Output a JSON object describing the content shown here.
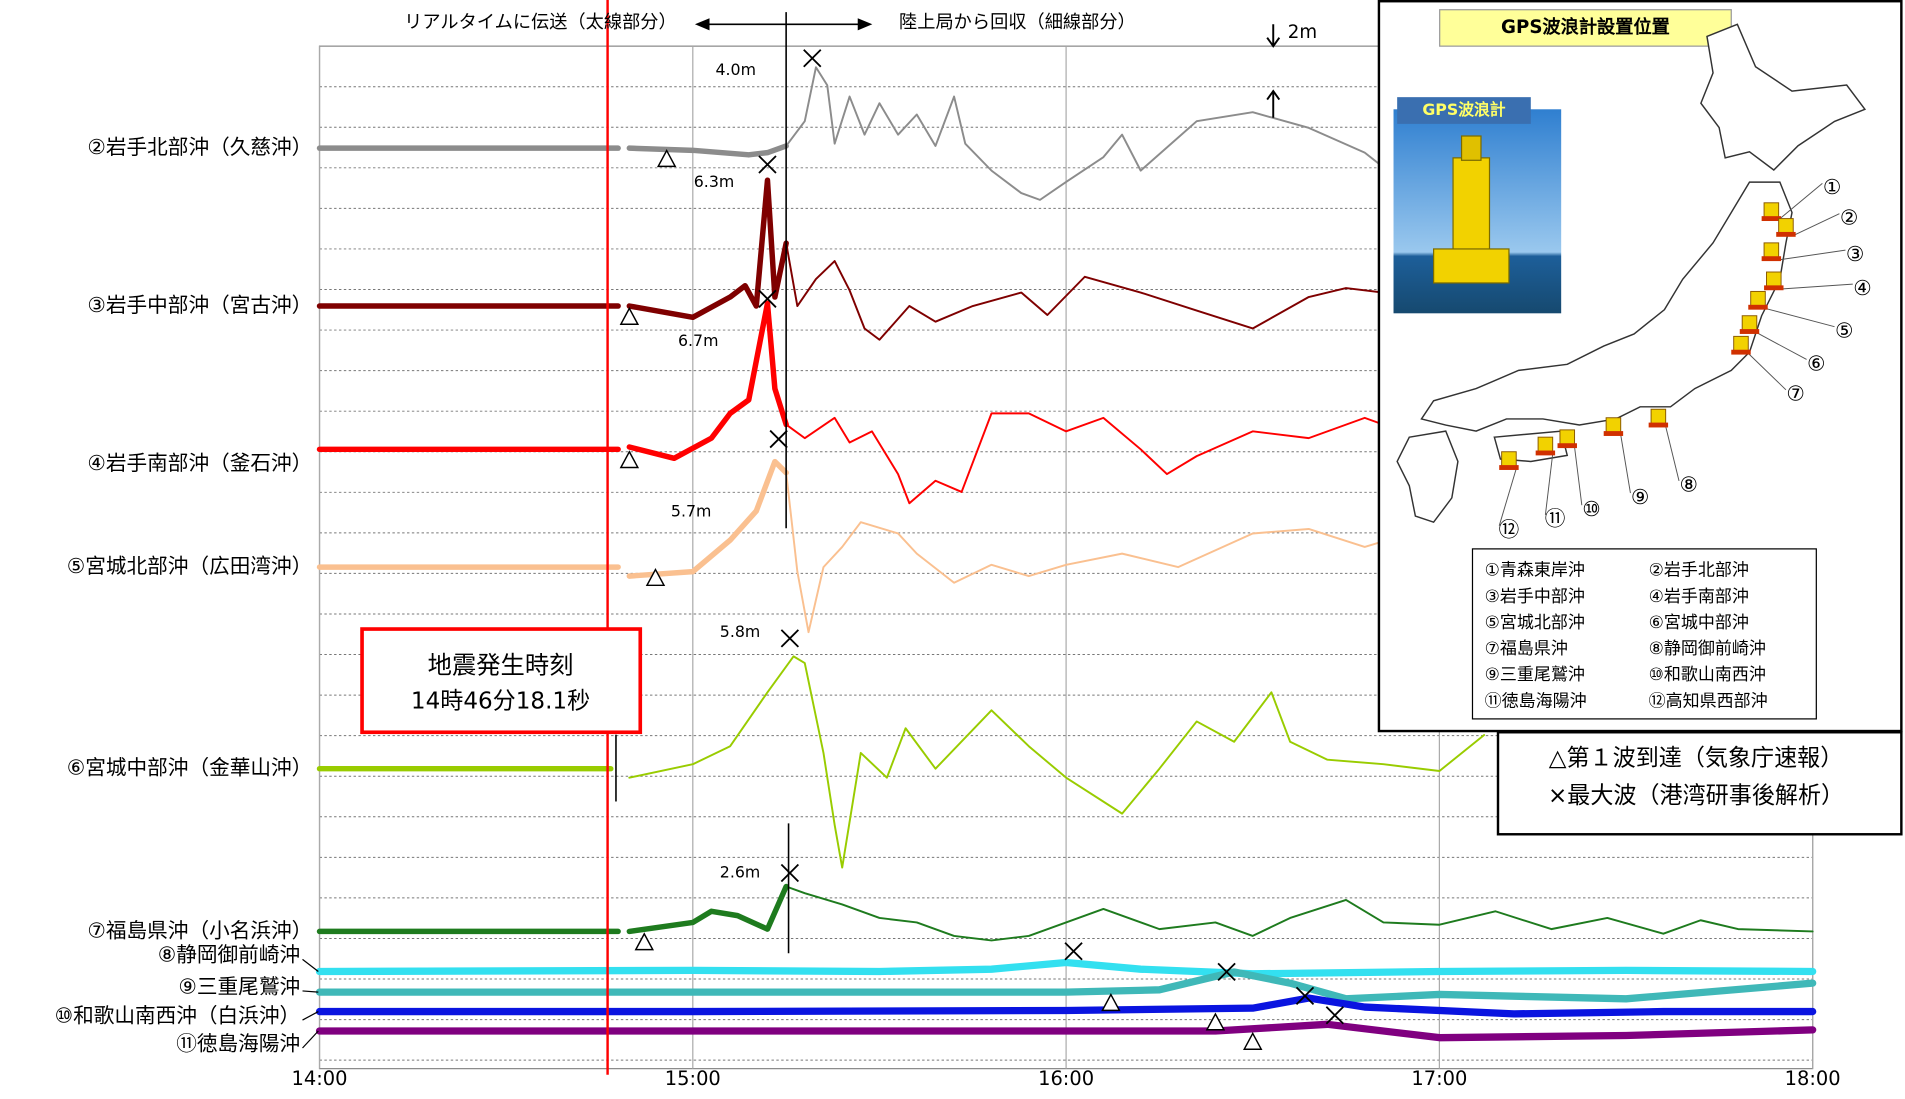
{
  "chart_data": {
    "type": "line",
    "xlim": [
      14,
      18
    ],
    "xticks": [
      {
        "value": 14,
        "label": "14:00"
      },
      {
        "value": 15,
        "label": "15:00"
      },
      {
        "value": 16,
        "label": "16:00"
      },
      {
        "value": 17,
        "label": "17:00"
      },
      {
        "value": 18,
        "label": "18:00"
      }
    ],
    "grid": true,
    "quake_time": 14.7717,
    "split_time": 15.25,
    "scale_m": 2,
    "scale_label": "2m",
    "annotations": {
      "realtime": "リアルタイムに伝送（太線部分）",
      "recovered": "陸上局から回収（細線部分）"
    },
    "quake_box": {
      "title": "地震発生時刻",
      "time": "14時46分18.1秒"
    },
    "legend": [
      "△第１波到達（気象庁速報）",
      "×最大波（港湾研事後解析）"
    ],
    "series": [
      {
        "name": "②岩手北部沖（久慈沖）",
        "color": "#8c8c8c",
        "thick_until": 15.25,
        "x": [
          14,
          14.8,
          14.81,
          14.83,
          15.0,
          15.15,
          15.2,
          15.25,
          15.3,
          15.33,
          15.36,
          15.38,
          15.42,
          15.46,
          15.5,
          15.55,
          15.6,
          15.65,
          15.7,
          15.73,
          15.8,
          15.88,
          15.93,
          16.0,
          16.1,
          16.15,
          16.2,
          16.35,
          16.5,
          16.65,
          16.8,
          16.9
        ],
        "values": [
          0,
          0,
          null,
          0,
          -0.1,
          -0.3,
          -0.2,
          0.1,
          1.2,
          3.6,
          2.8,
          0.2,
          2.3,
          0.6,
          2,
          0.6,
          1.5,
          0.1,
          2.3,
          0.2,
          -1,
          -2,
          -2.3,
          -1.5,
          -0.4,
          0.6,
          -1,
          1.2,
          1.6,
          0.9,
          -0.2,
          -1.5
        ],
        "arrival": 14.93,
        "max_x": 15.32,
        "max_value": 4.0,
        "max_label": "4.0m"
      },
      {
        "name": "③岩手中部沖（宮古沖）",
        "color": "#7f0000",
        "thick_until": 15.25,
        "x": [
          14,
          14.8,
          14.81,
          14.83,
          15.0,
          15.1,
          15.14,
          15.17,
          15.2,
          15.22,
          15.25,
          15.28,
          15.33,
          15.38,
          15.42,
          15.46,
          15.5,
          15.58,
          15.65,
          15.75,
          15.88,
          15.95,
          16.05,
          16.2,
          16.35,
          16.5,
          16.65,
          16.75,
          16.9
        ],
        "values": [
          0,
          0,
          null,
          0,
          -0.5,
          0.4,
          0.9,
          0,
          5.6,
          0.4,
          2.8,
          0,
          1.2,
          2,
          0.7,
          -1,
          -1.5,
          0,
          -0.7,
          0,
          0.6,
          -0.4,
          1.3,
          0.6,
          -0.2,
          -1,
          0.4,
          0.8,
          0.5
        ],
        "arrival": 14.83,
        "max_x": 15.2,
        "max_value": 6.3,
        "max_label": "6.3m"
      },
      {
        "name": "④岩手南部沖（釜石沖）",
        "color": "#ff0000",
        "thick_until": 15.25,
        "x": [
          14,
          14.8,
          14.81,
          14.83,
          14.95,
          15.05,
          15.1,
          15.15,
          15.2,
          15.22,
          15.25,
          15.3,
          15.38,
          15.42,
          15.48,
          15.55,
          15.58,
          15.65,
          15.72,
          15.8,
          15.9,
          16.0,
          16.1,
          16.2,
          16.27,
          16.35,
          16.5,
          16.65,
          16.8,
          16.9
        ],
        "values": [
          0,
          0,
          null,
          0.1,
          -0.4,
          0.5,
          1.6,
          2.2,
          6.5,
          2.7,
          1.1,
          0.5,
          1.4,
          0.3,
          0.8,
          -1.1,
          -2.4,
          -1.4,
          -1.9,
          1.6,
          1.6,
          0.8,
          1.4,
          0,
          -1.1,
          -0.3,
          0.8,
          0.5,
          1.4,
          0.8
        ],
        "arrival": 14.83,
        "max_x": 15.2,
        "max_value": 6.7,
        "max_label": "6.7m"
      },
      {
        "name": "⑤宮城北部沖（広田湾沖）",
        "color": "#fac090",
        "thick_until": 15.25,
        "x": [
          14,
          14.8,
          14.81,
          14.83,
          15.0,
          15.1,
          15.17,
          15.22,
          15.25,
          15.28,
          15.31,
          15.35,
          15.4,
          15.45,
          15.55,
          15.6,
          15.7,
          15.8,
          15.9,
          16.0,
          16.15,
          16.3,
          16.5,
          16.65,
          16.8,
          16.9
        ],
        "values": [
          0,
          0,
          null,
          -0.4,
          -0.2,
          1.2,
          2.5,
          4.7,
          4.2,
          -0.2,
          -2.9,
          0,
          0.9,
          2,
          1.5,
          0.6,
          -0.7,
          0.1,
          -0.4,
          0.1,
          0.6,
          0,
          1.5,
          1.7,
          0.9,
          1.4
        ],
        "arrival": 14.9,
        "max_x": 15.23,
        "max_value": 5.7,
        "max_label": "5.7m"
      },
      {
        "name": "⑥宮城中部沖（金華山沖）",
        "color": "#99cc00",
        "thick_until": 14.78,
        "x": [
          14,
          14.78,
          14.8,
          14.83,
          15.0,
          15.1,
          15.2,
          15.27,
          15.3,
          15.35,
          15.38,
          15.4,
          15.45,
          15.52,
          15.57,
          15.65,
          15.8,
          15.9,
          16.0,
          16.15,
          16.25,
          16.35,
          16.45,
          16.55,
          16.6,
          16.7,
          16.85,
          17.0,
          17.12
        ],
        "values": [
          0,
          0,
          null,
          -0.4,
          0.2,
          1,
          3.4,
          5,
          4.7,
          0.7,
          -2.5,
          -4.4,
          0.7,
          -0.4,
          1.8,
          0,
          2.6,
          1,
          -0.4,
          -2,
          0,
          2.1,
          1.2,
          3.4,
          1.2,
          0.4,
          0.2,
          -0.1,
          1.5
        ],
        "max_x": 15.26,
        "max_value": 5.8,
        "max_label": "5.8m"
      },
      {
        "name": "⑦福島県沖（小名浜沖）",
        "color": "#1e7b1e",
        "thick_until": 15.25,
        "x": [
          14,
          14.8,
          14.81,
          14.83,
          15.0,
          15.05,
          15.12,
          15.2,
          15.25,
          15.3,
          15.4,
          15.5,
          15.6,
          15.7,
          15.8,
          15.9,
          16.0,
          16.1,
          16.25,
          16.4,
          16.5,
          16.6,
          16.75,
          16.85,
          17.0,
          17.15,
          17.3,
          17.45,
          17.6,
          17.7,
          17.8,
          18.0
        ],
        "values": [
          0,
          0,
          null,
          0,
          0.4,
          0.9,
          0.7,
          0.1,
          2,
          1.7,
          1.2,
          0.6,
          0.4,
          -0.2,
          -0.4,
          -0.2,
          0.4,
          1,
          0.1,
          0.4,
          -0.2,
          0.6,
          1.4,
          0.4,
          0.3,
          0.9,
          0.1,
          0.6,
          -0.1,
          0.5,
          0.1,
          0
        ],
        "arrival": 14.87,
        "max_x": 15.26,
        "max_value": 2.6,
        "max_label": "2.6m"
      },
      {
        "name": "⑧静岡御前崎沖",
        "color": "#33e0f0",
        "thick_until": 18,
        "x": [
          14,
          15,
          15.5,
          15.8,
          16.0,
          16.2,
          16.5,
          17.0,
          17.5,
          18.0
        ],
        "values": [
          0,
          0.05,
          0,
          0.1,
          0.4,
          0.1,
          -0.1,
          0,
          0.05,
          0
        ],
        "max_x": 16.02,
        "max_value": 0.9
      },
      {
        "name": "⑨三重尾鷲沖",
        "color": "#3fb8b8",
        "thick_until": 18,
        "x": [
          14,
          15,
          16,
          16.25,
          16.45,
          16.6,
          16.75,
          17.0,
          17.5,
          18.0
        ],
        "values": [
          0,
          0,
          0,
          0.1,
          0.9,
          0.4,
          -0.3,
          -0.1,
          -0.3,
          0.4
        ],
        "arrival": 16.12,
        "max_x": 16.43,
        "max_value": 0.9
      },
      {
        "name": "⑩和歌山南西沖（白浜沖）",
        "color": "#0a14e0",
        "thick_until": 18,
        "x": [
          14,
          15,
          16,
          16.5,
          16.65,
          16.8,
          17.2,
          17.6,
          18.0
        ],
        "values": [
          0,
          0,
          0.05,
          0.15,
          0.6,
          0.2,
          -0.1,
          0,
          0
        ],
        "arrival": 16.4,
        "max_x": 16.64,
        "max_value": 0.7
      },
      {
        "name": "⑪徳島海陽沖",
        "color": "#800080",
        "thick_until": 18,
        "x": [
          14,
          15,
          16,
          16.4,
          16.7,
          17.0,
          17.5,
          18.0
        ],
        "values": [
          0,
          0,
          0,
          0,
          0.3,
          -0.3,
          -0.2,
          0.05
        ],
        "arrival": 16.5,
        "max_x": 16.72,
        "max_value": 0.7
      }
    ]
  },
  "inset": {
    "title": "GPS波浪計設置位置",
    "photo_label": "GPS波浪計",
    "buoy_labels": [
      "①",
      "②",
      "③",
      "④",
      "⑤",
      "⑥",
      "⑦",
      "⑧",
      "⑨",
      "⑩",
      "⑪",
      "⑫"
    ],
    "stations": [
      "①青森東岸沖",
      "②岩手北部沖",
      "③岩手中部沖",
      "④岩手南部沖",
      "⑤宮城北部沖",
      "⑥宮城中部沖",
      "⑦福島県沖",
      "⑧静岡御前崎沖",
      "⑨三重尾鷲沖",
      "⑩和歌山南西沖",
      "⑪徳島海陽沖",
      "⑫高知県西部沖"
    ]
  }
}
